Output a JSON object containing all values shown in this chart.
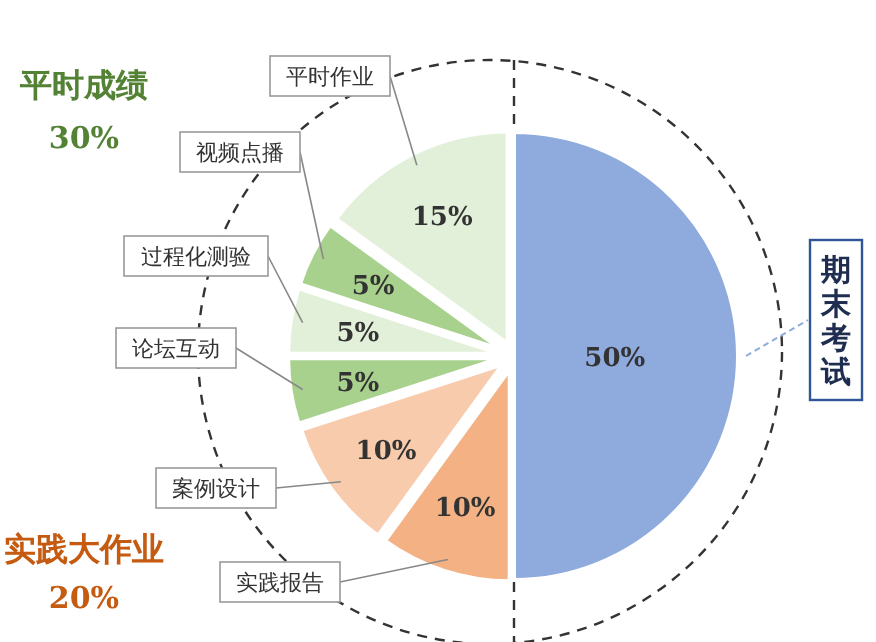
{
  "chart_data": {
    "type": "pie",
    "categories": [
      "期末考试",
      "实践报告",
      "案例设计",
      "论坛互动",
      "过程化测验",
      "视频点播",
      "平时作业"
    ],
    "values": [
      50,
      10,
      10,
      5,
      5,
      5,
      15
    ],
    "colors": [
      "#8faadc",
      "#f4b183",
      "#f8cbad",
      "#a9d18e",
      "#e2f0d9",
      "#a9d18e",
      "#e2f0d9"
    ],
    "value_labels": [
      "50%",
      "10%",
      "10%",
      "5%",
      "5%",
      "5%",
      "15%"
    ],
    "annotations": [
      "平时成绩",
      "30%",
      "实践大作业",
      "20%"
    ]
  }
}
